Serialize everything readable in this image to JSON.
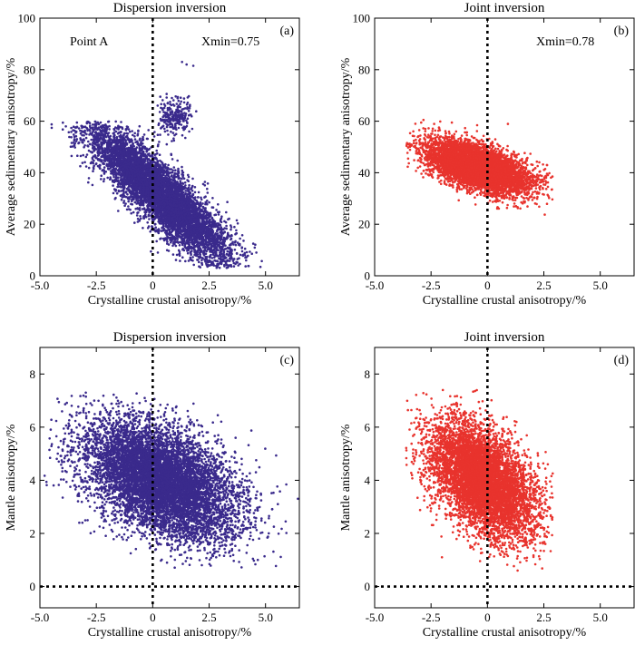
{
  "colors": {
    "dispersion": "#3a2a8c",
    "joint": "#e8332d"
  },
  "chart_data": [
    {
      "id": "a",
      "type": "scatter",
      "title": "Dispersion inversion",
      "panel_label": "(a)",
      "point_label": "Point A",
      "xmin_label": "Xmin=0.75",
      "xlabel": "Crystalline crustal anisotropy/%",
      "ylabel": "Average sedimentary anisotropy/%",
      "xlim": [
        -5,
        6.5
      ],
      "ylim": [
        0,
        100
      ],
      "xticks": [
        -5,
        -2.5,
        0,
        2.5,
        5
      ],
      "xtick_labels": [
        "-5.0",
        "-2.5",
        "0",
        "2.5",
        "5.0"
      ],
      "yticks": [
        0,
        20,
        40,
        60,
        80,
        100
      ],
      "ytick_labels": [
        "0",
        "20",
        "40",
        "60",
        "80",
        "100"
      ],
      "reference_lines": {
        "x": 0
      },
      "color_key": "dispersion",
      "series_shape": {
        "main": {
          "points": 7000,
          "x_mean": 0.3,
          "x_sd": 1.6,
          "slope": -7.6,
          "intercept": 34,
          "y_sd": 6.5,
          "x_range": [
            -4.8,
            6.5
          ],
          "y_range": [
            3,
            60
          ]
        },
        "cluster": {
          "points": 260,
          "x_mean": 1.0,
          "x_sd": 0.38,
          "y_mean": 61.5,
          "y_sd": 3.3,
          "x_range": [
            0.2,
            2.0
          ],
          "y_range": [
            52,
            72
          ]
        },
        "outliers": [
          [
            1.3,
            83
          ],
          [
            1.5,
            82
          ],
          [
            1.8,
            81.5
          ]
        ]
      }
    },
    {
      "id": "b",
      "type": "scatter",
      "title": "Joint inversion",
      "panel_label": "(b)",
      "xmin_label": "Xmin=0.78",
      "xlabel": "Crystalline crustal anisotropy/%",
      "ylabel": "Average sedimentary anisotropy/%",
      "xlim": [
        -5,
        6.5
      ],
      "ylim": [
        0,
        100
      ],
      "xticks": [
        -5,
        -2.5,
        0,
        2.5,
        5
      ],
      "xtick_labels": [
        "-5.0",
        "-2.5",
        "0",
        "2.5",
        "5.0"
      ],
      "yticks": [
        0,
        20,
        40,
        60,
        80,
        100
      ],
      "ytick_labels": [
        "0",
        "20",
        "40",
        "60",
        "80",
        "100"
      ],
      "reference_lines": {
        "x": 0
      },
      "color_key": "joint",
      "series_shape": {
        "main": {
          "points": 6000,
          "x_mean": -0.4,
          "x_sd": 1.15,
          "slope": -2.5,
          "intercept": 41,
          "y_sd": 4.2,
          "x_range": [
            -3.6,
            2.9
          ],
          "y_range": [
            23,
            64
          ]
        }
      }
    },
    {
      "id": "c",
      "type": "scatter",
      "title": "Dispersion inversion",
      "panel_label": "(c)",
      "xlabel": "Crystalline crustal anisotropy/%",
      "ylabel": "Mantle anisotropy/%",
      "xlim": [
        -5,
        6.5
      ],
      "ylim": [
        -0.8,
        9
      ],
      "xticks": [
        -5,
        -2.5,
        0,
        2.5,
        5
      ],
      "xtick_labels": [
        "-5.0",
        "-2.5",
        "0",
        "2.5",
        "5.0"
      ],
      "yticks": [
        0,
        2,
        4,
        6,
        8
      ],
      "ytick_labels": [
        "0",
        "2",
        "4",
        "6",
        "8"
      ],
      "reference_lines": {
        "x": 0,
        "y": 0
      },
      "color_key": "dispersion",
      "series_shape": {
        "main": {
          "points": 8000,
          "x_mean": 0.4,
          "x_sd": 1.7,
          "slope": -0.3,
          "intercept": 4.1,
          "y_sd": 1.0,
          "x_range": [
            -4.8,
            6.5
          ],
          "y_range": [
            0.7,
            7.3
          ]
        }
      }
    },
    {
      "id": "d",
      "type": "scatter",
      "title": "Joint inversion",
      "panel_label": "(d)",
      "xlabel": "Crystalline crustal anisotropy/%",
      "ylabel": "Mantle anisotropy/%",
      "xlim": [
        -5,
        6.5
      ],
      "ylim": [
        -0.8,
        9
      ],
      "xticks": [
        -5,
        -2.5,
        0,
        2.5,
        5
      ],
      "xtick_labels": [
        "-5.0",
        "-2.5",
        "0",
        "2.5",
        "5.0"
      ],
      "yticks": [
        0,
        2,
        4,
        6,
        8
      ],
      "ytick_labels": [
        "0",
        "2",
        "4",
        "6",
        "8"
      ],
      "reference_lines": {
        "x": 0,
        "y": 0
      },
      "color_key": "joint",
      "series_shape": {
        "main": {
          "points": 6500,
          "x_mean": -0.2,
          "x_sd": 1.2,
          "slope": -0.45,
          "intercept": 3.9,
          "y_sd": 0.95,
          "x_range": [
            -3.6,
            2.9
          ],
          "y_range": [
            0.6,
            7.4
          ]
        }
      }
    }
  ]
}
